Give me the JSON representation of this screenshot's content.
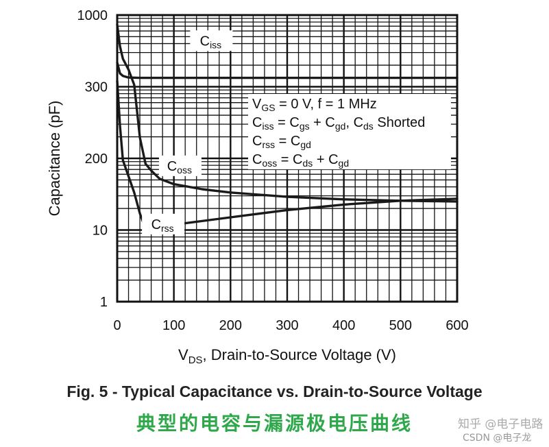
{
  "chart_data": {
    "type": "line",
    "title": "",
    "ylabel": "Capacitance (pF)",
    "xlabel": {
      "main": "V",
      "sub": "DS",
      "rest": ", Drain-to-Source Voltage (V)"
    },
    "x_ticks": [
      0,
      100,
      200,
      300,
      400,
      500,
      600
    ],
    "xlim": [
      0,
      600
    ],
    "y_scale": "log",
    "y_ticks_printed": [
      "1",
      "10",
      "200",
      "300",
      "1000"
    ],
    "grid": true,
    "conditions": [
      [
        {
          "t": "V"
        },
        {
          "t": "GS",
          "sub": true
        },
        {
          "t": " = 0 V, f = 1 MHz"
        }
      ],
      [
        {
          "t": "C"
        },
        {
          "t": "iss",
          "sub": true
        },
        {
          "t": " = C"
        },
        {
          "t": "gs",
          "sub": true
        },
        {
          "t": " + C"
        },
        {
          "t": "gd",
          "sub": true
        },
        {
          "t": ", C"
        },
        {
          "t": "ds",
          "sub": true
        },
        {
          "t": " Shorted"
        }
      ],
      [
        {
          "t": "C"
        },
        {
          "t": "rss",
          "sub": true
        },
        {
          "t": " = C"
        },
        {
          "t": "gd",
          "sub": true
        }
      ],
      [
        {
          "t": "C"
        },
        {
          "t": "oss",
          "sub": true
        },
        {
          "t": " = C"
        },
        {
          "t": "ds",
          "sub": true
        },
        {
          "t": " + C"
        },
        {
          "t": "gd",
          "sub": true
        }
      ]
    ],
    "series": [
      {
        "name": "C",
        "sub": "iss",
        "x": [
          0,
          5,
          10,
          20,
          40,
          100,
          200,
          300,
          400,
          500,
          600
        ],
        "y": [
          450,
          375,
          360,
          350,
          348,
          348,
          348,
          348,
          348,
          348,
          348
        ]
      },
      {
        "name": "C",
        "sub": "oss",
        "x": [
          0,
          5,
          10,
          20,
          30,
          40,
          50,
          60,
          75,
          100,
          150,
          200,
          300,
          400,
          500,
          600
        ],
        "y": [
          850,
          590,
          480,
          400,
          310,
          225,
          160,
          120,
          85,
          68,
          55,
          48,
          40,
          36,
          34,
          33
        ]
      },
      {
        "name": "C",
        "sub": "rss",
        "x": [
          0,
          5,
          10,
          20,
          30,
          40,
          50,
          60,
          100,
          200,
          300,
          400,
          500,
          600
        ],
        "y": [
          330,
          240,
          185,
          95,
          48,
          20,
          10.5,
          11,
          12.5,
          17,
          23,
          29,
          34,
          37
        ]
      }
    ],
    "series_label_pos": [
      {
        "x": 165,
        "y": 600
      },
      {
        "x": 110,
        "y": 120
      },
      {
        "x": 80,
        "y": 10.5
      }
    ]
  },
  "caption": "Fig. 5 - Typical Capacitance vs. Drain-to-Source Voltage",
  "subcaption": "典型的电容与漏源极电压曲线",
  "watermark": {
    "line1": "知乎 @电子电路",
    "line2": "CSDN @电子龙"
  }
}
